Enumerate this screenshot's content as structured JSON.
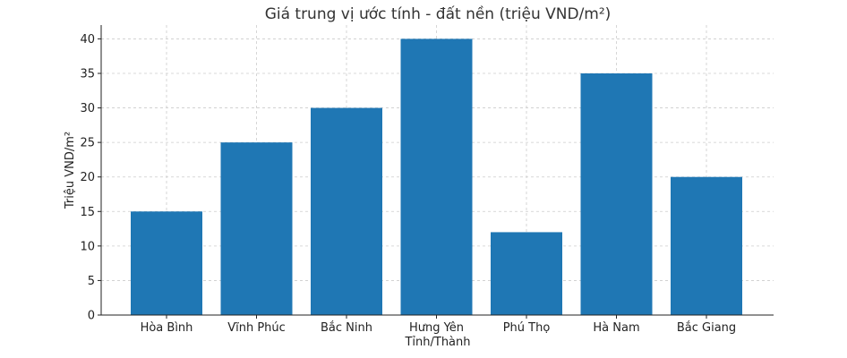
{
  "chart_data": {
    "type": "bar",
    "title": "Giá trung vị ước tính - đất nền (triệu VND/m²)",
    "xlabel": "Tỉnh/Thành",
    "ylabel": "Triệu VND/m²",
    "categories": [
      "Hòa Bình",
      "Vĩnh Phúc",
      "Bắc Ninh",
      "Hưng Yên",
      "Phú Thọ",
      "Hà Nam",
      "Bắc Giang"
    ],
    "values": [
      15,
      25,
      30,
      40,
      12,
      35,
      20
    ],
    "ylim": [
      0,
      42
    ],
    "yticks": [
      0,
      5,
      10,
      15,
      20,
      25,
      30,
      35,
      40
    ],
    "grid": true,
    "bar_color": "#1f77b4"
  }
}
